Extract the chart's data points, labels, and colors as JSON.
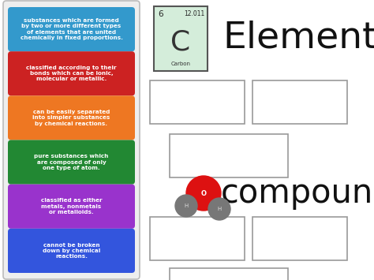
{
  "bg_color": "#ffffff",
  "cards": [
    {
      "text": "substances which are formed\nby two or more different types\nof elements that are united\nchemically in fixed proportions.",
      "color": "#3399cc",
      "text_color": "#ffffff"
    },
    {
      "text": "classified according to their\nbonds which can be ionic,\nmolecular or metallic.",
      "color": "#cc2222",
      "text_color": "#ffffff"
    },
    {
      "text": "can be easily separated\ninto simpler substances\nby chemical reactions.",
      "color": "#ee7722",
      "text_color": "#ffffff"
    },
    {
      "text": "pure substances which\nare composed of only\none type of atom.",
      "color": "#228833",
      "text_color": "#ffffff"
    },
    {
      "text": "classified as either\nmetals, nonmetals\nor metalloids.",
      "color": "#9933cc",
      "text_color": "#ffffff"
    },
    {
      "text": "cannot be broken\ndown by chemical\nreactions.",
      "color": "#3355dd",
      "text_color": "#ffffff"
    }
  ],
  "element_label": "Element",
  "compound_label": "compound",
  "periodic_element": {
    "number": "6",
    "mass": "12.011",
    "symbol": "C",
    "name": "Carbon",
    "bg": "#d4edda",
    "border": "#555555"
  }
}
